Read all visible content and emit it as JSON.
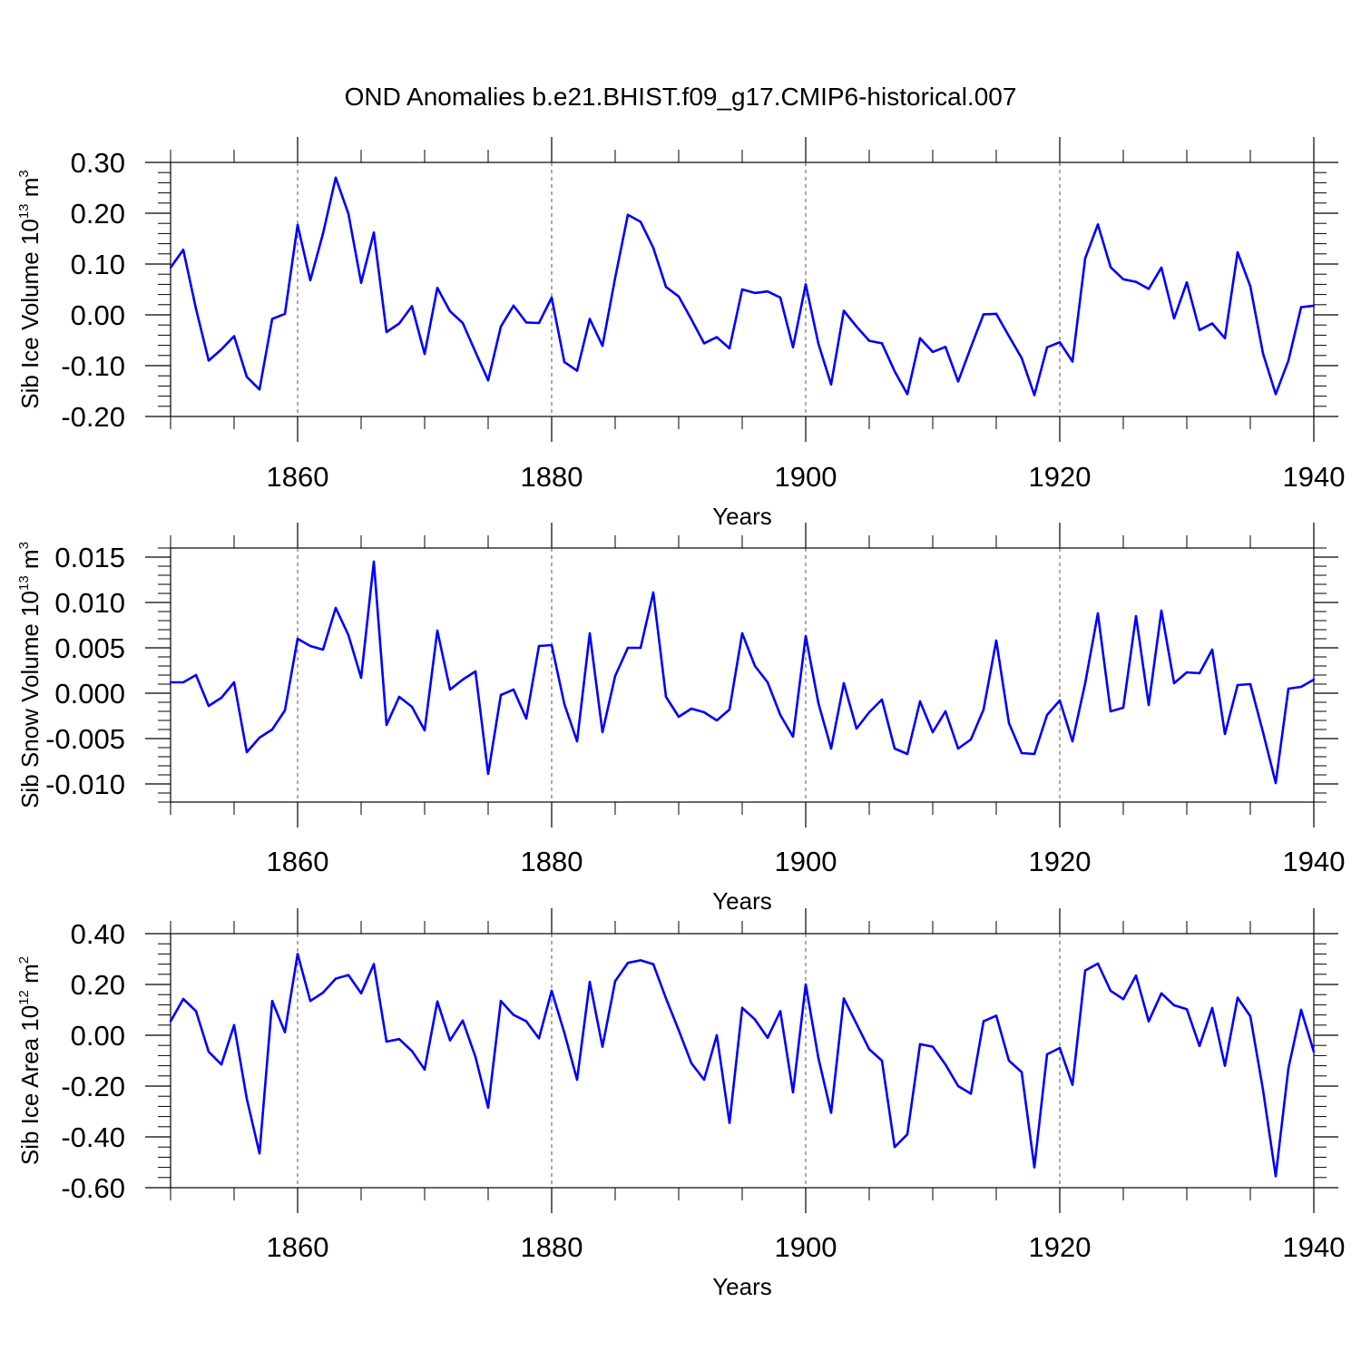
{
  "title": "OND Anomalies b.e21.BHIST.f09_g17.CMIP6-historical.007",
  "chart_data": [
    {
      "type": "line",
      "ylabel": "Sib Ice Volume 10",
      "ylabel_exp": "13",
      "ylabel_unit": " m",
      "ylabel_unit_exp": "3",
      "xlabel": "Years",
      "xlim": [
        1850,
        1940
      ],
      "ylim": [
        -0.2,
        0.3
      ],
      "yticks": [
        -0.2,
        -0.1,
        0.0,
        0.1,
        0.2,
        0.3
      ],
      "ytick_labels": [
        "-0.20",
        "-0.10",
        "0.00",
        "0.10",
        "0.20",
        "0.30"
      ],
      "xticks": [
        1860,
        1880,
        1900,
        1920,
        1940
      ],
      "xtick_labels": [
        "1860",
        "1880",
        "1900",
        "1920",
        "1940"
      ],
      "color": "#0000ff",
      "x_start": 1850,
      "x_step": 1,
      "values": [
        0.093,
        0.128,
        0.012,
        -0.09,
        -0.068,
        -0.042,
        -0.122,
        -0.147,
        -0.008,
        0.002,
        0.177,
        0.068,
        0.16,
        0.27,
        0.199,
        0.063,
        0.162,
        -0.034,
        -0.017,
        0.017,
        -0.077,
        0.053,
        0.007,
        -0.016,
        -0.073,
        -0.129,
        -0.023,
        0.018,
        -0.015,
        -0.016,
        0.034,
        -0.093,
        -0.11,
        -0.008,
        -0.061,
        0.073,
        0.197,
        0.183,
        0.132,
        0.055,
        0.036,
        -0.009,
        -0.056,
        -0.044,
        -0.066,
        0.05,
        0.043,
        0.046,
        0.034,
        -0.064,
        0.06,
        -0.057,
        -0.137,
        0.008,
        -0.023,
        -0.051,
        -0.056,
        -0.111,
        -0.156,
        -0.046,
        -0.073,
        -0.063,
        -0.131,
        -0.064,
        0.001,
        0.002,
        -0.042,
        -0.085,
        -0.158,
        -0.064,
        -0.054,
        -0.092,
        0.111,
        0.178,
        0.094,
        0.07,
        0.065,
        0.051,
        0.093,
        -0.007,
        0.064,
        -0.03,
        -0.017,
        -0.046,
        0.123,
        0.056,
        -0.076,
        -0.156,
        -0.09,
        0.015,
        0.018
      ]
    },
    {
      "type": "line",
      "ylabel": "Sib Snow Volume 10",
      "ylabel_exp": "13",
      "ylabel_unit": " m",
      "ylabel_unit_exp": "3",
      "xlabel": "Years",
      "xlim": [
        1850,
        1940
      ],
      "ylim": [
        -0.012,
        0.016
      ],
      "yticks": [
        -0.01,
        -0.005,
        0.0,
        0.005,
        0.01,
        0.015
      ],
      "ytick_labels": [
        "-0.010",
        "-0.005",
        "0.000",
        "0.005",
        "0.010",
        "0.015"
      ],
      "xticks": [
        1860,
        1880,
        1900,
        1920,
        1940
      ],
      "xtick_labels": [
        "1860",
        "1880",
        "1900",
        "1920",
        "1940"
      ],
      "color": "#0000ff",
      "x_start": 1850,
      "x_step": 1,
      "values": [
        0.0012,
        0.0012,
        0.002,
        -0.0014,
        -0.0005,
        0.0012,
        -0.0065,
        -0.0049,
        -0.004,
        -0.0019,
        0.006,
        0.0052,
        0.0048,
        0.0094,
        0.0064,
        0.0017,
        0.0145,
        -0.0035,
        -0.0004,
        -0.0015,
        -0.0041,
        0.0069,
        0.0004,
        0.0015,
        0.0024,
        -0.0089,
        -0.0002,
        0.0004,
        -0.0028,
        0.0052,
        0.0053,
        -0.0012,
        -0.0053,
        0.0066,
        -0.0043,
        0.0019,
        0.005,
        0.005,
        0.0111,
        -0.0004,
        -0.0026,
        -0.0017,
        -0.0021,
        -0.003,
        -0.0018,
        0.0066,
        0.003,
        0.0012,
        -0.0024,
        -0.0048,
        0.0063,
        -0.0011,
        -0.0061,
        0.0011,
        -0.0039,
        -0.0021,
        -0.0007,
        -0.0061,
        -0.0067,
        -0.0009,
        -0.0043,
        -0.002,
        -0.0061,
        -0.0051,
        -0.0018,
        0.0058,
        -0.0033,
        -0.0066,
        -0.0067,
        -0.0024,
        -0.0008,
        -0.0053,
        0.0011,
        0.0088,
        -0.002,
        -0.0016,
        0.0085,
        -0.0013,
        0.0091,
        0.0011,
        0.0023,
        0.0022,
        0.0048,
        -0.0045,
        0.0009,
        0.001,
        -0.0043,
        -0.0099,
        0.0005,
        0.0007,
        0.0015
      ]
    },
    {
      "type": "line",
      "ylabel": "Sib Ice Area 10",
      "ylabel_exp": "12",
      "ylabel_unit": " m",
      "ylabel_unit_exp": "2",
      "xlabel": "Years",
      "xlim": [
        1850,
        1940
      ],
      "ylim": [
        -0.6,
        0.4
      ],
      "yticks": [
        -0.6,
        -0.4,
        -0.2,
        0.0,
        0.2,
        0.4
      ],
      "ytick_labels": [
        "-0.60",
        "-0.40",
        "-0.20",
        "0.00",
        "0.20",
        "0.40"
      ],
      "xticks": [
        1860,
        1880,
        1900,
        1920,
        1940
      ],
      "xtick_labels": [
        "1860",
        "1880",
        "1900",
        "1920",
        "1940"
      ],
      "color": "#0000ff",
      "x_start": 1850,
      "x_step": 1,
      "values": [
        0.055,
        0.143,
        0.095,
        -0.065,
        -0.115,
        0.04,
        -0.25,
        -0.465,
        0.135,
        0.012,
        0.32,
        0.135,
        0.168,
        0.223,
        0.237,
        0.165,
        0.28,
        -0.025,
        -0.015,
        -0.062,
        -0.135,
        0.133,
        -0.02,
        0.058,
        -0.085,
        -0.285,
        0.135,
        0.08,
        0.055,
        -0.012,
        0.175,
        0.01,
        -0.175,
        0.21,
        -0.045,
        0.213,
        0.285,
        0.295,
        0.28,
        0.145,
        0.02,
        -0.11,
        -0.175,
        0.0,
        -0.345,
        0.108,
        0.062,
        -0.01,
        0.095,
        -0.225,
        0.2,
        -0.09,
        -0.305,
        0.145,
        0.045,
        -0.055,
        -0.1,
        -0.44,
        -0.39,
        -0.035,
        -0.045,
        -0.115,
        -0.2,
        -0.23,
        0.055,
        0.077,
        -0.1,
        -0.145,
        -0.52,
        -0.075,
        -0.05,
        -0.195,
        0.255,
        0.282,
        0.175,
        0.142,
        0.235,
        0.055,
        0.165,
        0.118,
        0.103,
        -0.042,
        0.107,
        -0.12,
        0.148,
        0.075,
        -0.215,
        -0.555,
        -0.13,
        0.1,
        -0.065
      ]
    }
  ]
}
